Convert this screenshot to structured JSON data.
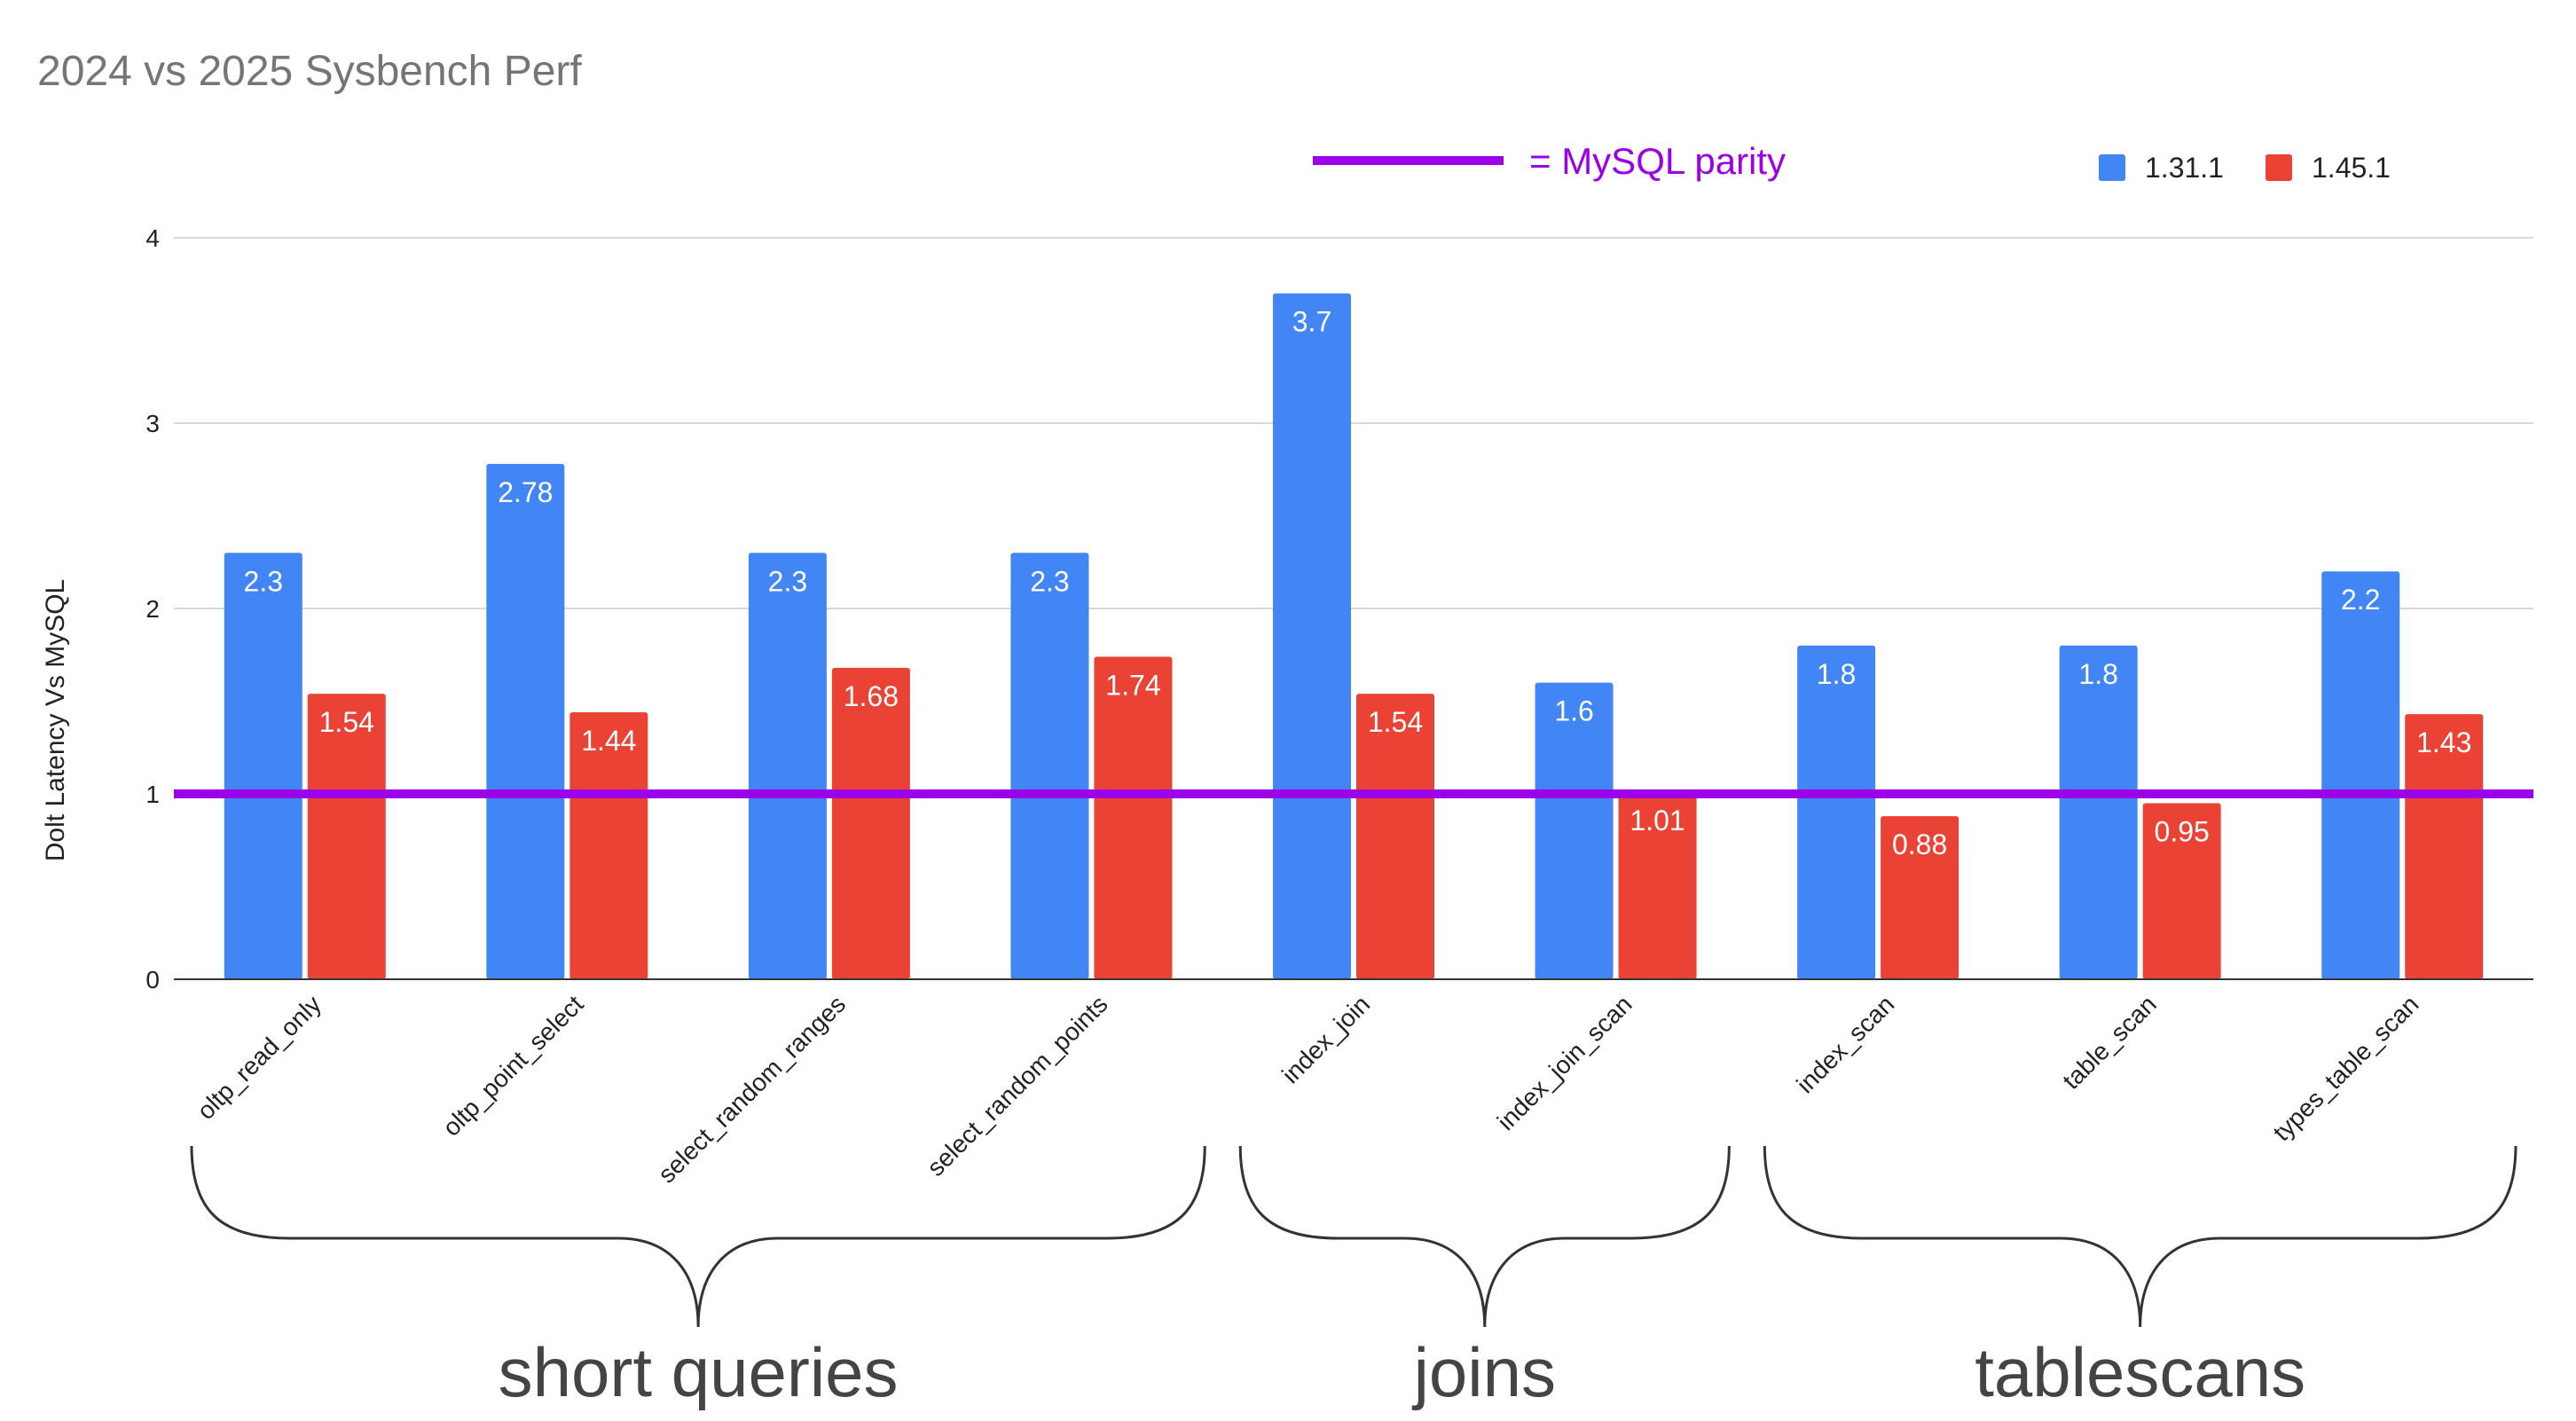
{
  "chart_data": {
    "type": "bar",
    "title": "2024 vs 2025 Sysbench Perf",
    "ylabel": "Dolt Latency Vs MySQL",
    "xlabel": "",
    "ylim": [
      0,
      4
    ],
    "yticks": [
      "0",
      "1",
      "2",
      "3",
      "4"
    ],
    "grid": true,
    "legend_position": "top-right",
    "categories": [
      "oltp_read_only",
      "oltp_point_select",
      "select_random_ranges",
      "select_random_points",
      "index_join",
      "index_join_scan",
      "index_scan",
      "table_scan",
      "types_table_scan"
    ],
    "series": [
      {
        "name": "1.31.1",
        "color": "#4285f4",
        "values": [
          2.3,
          2.78,
          2.3,
          2.3,
          3.7,
          1.6,
          1.8,
          1.8,
          2.2
        ],
        "labels": [
          "2.3",
          "2.78",
          "2.3",
          "2.3",
          "3.7",
          "1.6",
          "1.8",
          "1.8",
          "2.2"
        ]
      },
      {
        "name": "1.45.1",
        "color": "#ea4335",
        "values": [
          1.54,
          1.44,
          1.68,
          1.74,
          1.54,
          1.01,
          0.88,
          0.95,
          1.43
        ],
        "labels": [
          "1.54",
          "1.44",
          "1.68",
          "1.74",
          "1.54",
          "1.01",
          "0.88",
          "0.95",
          "1.43"
        ]
      }
    ],
    "reference_line": {
      "value": 1,
      "label": "= MySQL parity",
      "color": "#9b00e8"
    },
    "groups": [
      {
        "label": "short queries",
        "first": 0,
        "last": 3
      },
      {
        "label": "joins",
        "first": 4,
        "last": 5
      },
      {
        "label": "tablescans",
        "first": 6,
        "last": 8
      }
    ]
  }
}
